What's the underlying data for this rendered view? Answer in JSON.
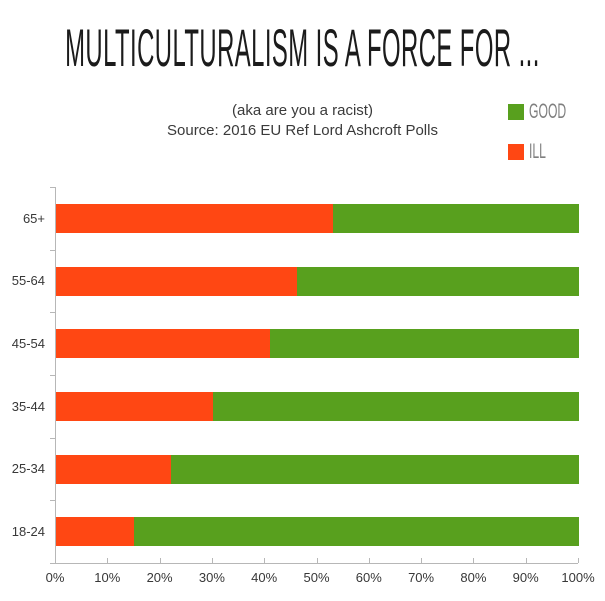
{
  "title": "MULTICULTURALISM IS A FORCE FOR ...",
  "subtitle_line1": "(aka are you a racist)",
  "subtitle_line2": "Source: 2016 EU Ref Lord Ashcroft Polls",
  "legend": {
    "items": [
      {
        "label": "GOOD",
        "color": "#58A01E",
        "icon": "green-square-swatch"
      },
      {
        "label": "ILL",
        "color": "#FF4713",
        "icon": "orange-square-swatch"
      }
    ]
  },
  "chart_data": {
    "type": "bar",
    "orientation": "horizontal",
    "stacked": true,
    "title": "MULTICULTURALISM IS A FORCE FOR ...",
    "subtitle": "(aka are you a racist) Source: 2016 EU Ref Lord Ashcroft Polls",
    "xlabel": "",
    "ylabel": "",
    "categories": [
      "65+",
      "55-64",
      "45-54",
      "35-44",
      "25-34",
      "18-24"
    ],
    "series": [
      {
        "name": "ILL",
        "color": "#FF4713",
        "values": [
          53,
          46,
          41,
          30,
          22,
          15
        ]
      },
      {
        "name": "GOOD",
        "color": "#58A01E",
        "values": [
          47,
          54,
          59,
          70,
          78,
          85
        ]
      }
    ],
    "x_ticks": [
      "0%",
      "10%",
      "20%",
      "30%",
      "40%",
      "50%",
      "60%",
      "70%",
      "80%",
      "90%",
      "100%"
    ],
    "xlim": [
      0,
      100
    ],
    "grid": false,
    "legend_position": "top-right",
    "axis_color": "#b7b7b7"
  }
}
